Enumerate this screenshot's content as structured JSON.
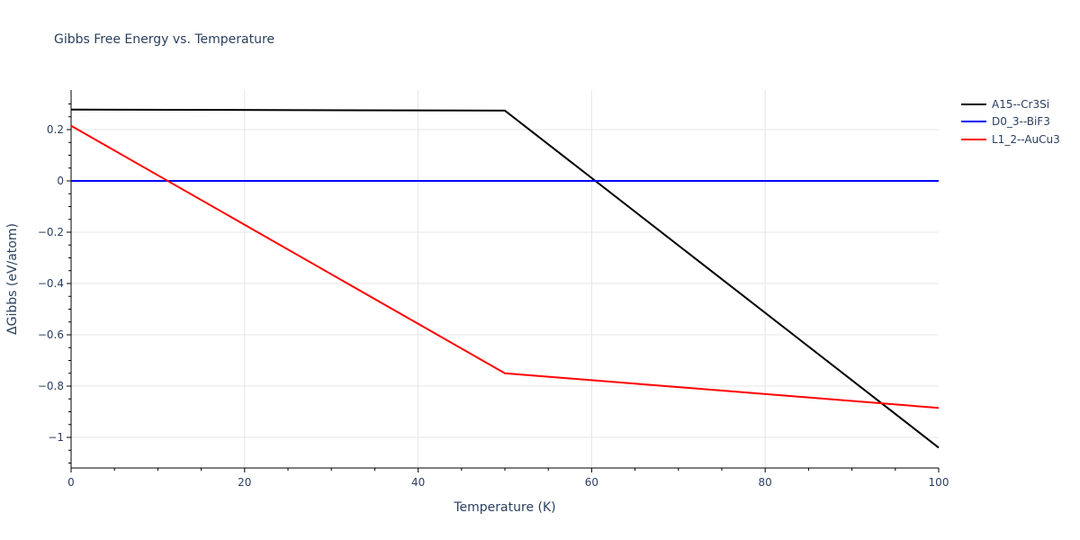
{
  "title": "Gibbs Free Energy vs. Temperature",
  "legend": [
    {
      "name": "A15--Cr3Si",
      "color": "#000000"
    },
    {
      "name": "D0_3--BiF3",
      "color": "#0000ff"
    },
    {
      "name": "L1_2--AuCu3",
      "color": "#ff0000"
    }
  ],
  "axes": {
    "xlabel": "Temperature (K)",
    "ylabel": "ΔGibbs (eV/atom)",
    "xticks": [
      "0",
      "20",
      "40",
      "60",
      "80",
      "100"
    ],
    "yticks": [
      "0.2",
      "0",
      "−0.2",
      "−0.4",
      "−0.6",
      "−0.8",
      "−1"
    ]
  },
  "chart_data": {
    "type": "line",
    "title": "Gibbs Free Energy vs. Temperature",
    "xlabel": "Temperature (K)",
    "ylabel": "ΔGibbs (eV/atom)",
    "xlim": [
      0,
      100
    ],
    "ylim": [
      -1.12,
      0.35
    ],
    "grid": true,
    "legend_position": "top-right outside",
    "series": [
      {
        "name": "A15--Cr3Si",
        "color": "#000000",
        "x": [
          0,
          50,
          100
        ],
        "y": [
          0.278,
          0.274,
          -1.04
        ]
      },
      {
        "name": "D0_3--BiF3",
        "color": "#0000ff",
        "x": [
          0,
          50,
          100
        ],
        "y": [
          0,
          0,
          0
        ]
      },
      {
        "name": "L1_2--AuCu3",
        "color": "#ff0000",
        "x": [
          0,
          50,
          100
        ],
        "y": [
          0.215,
          -0.75,
          -0.885
        ]
      }
    ]
  }
}
